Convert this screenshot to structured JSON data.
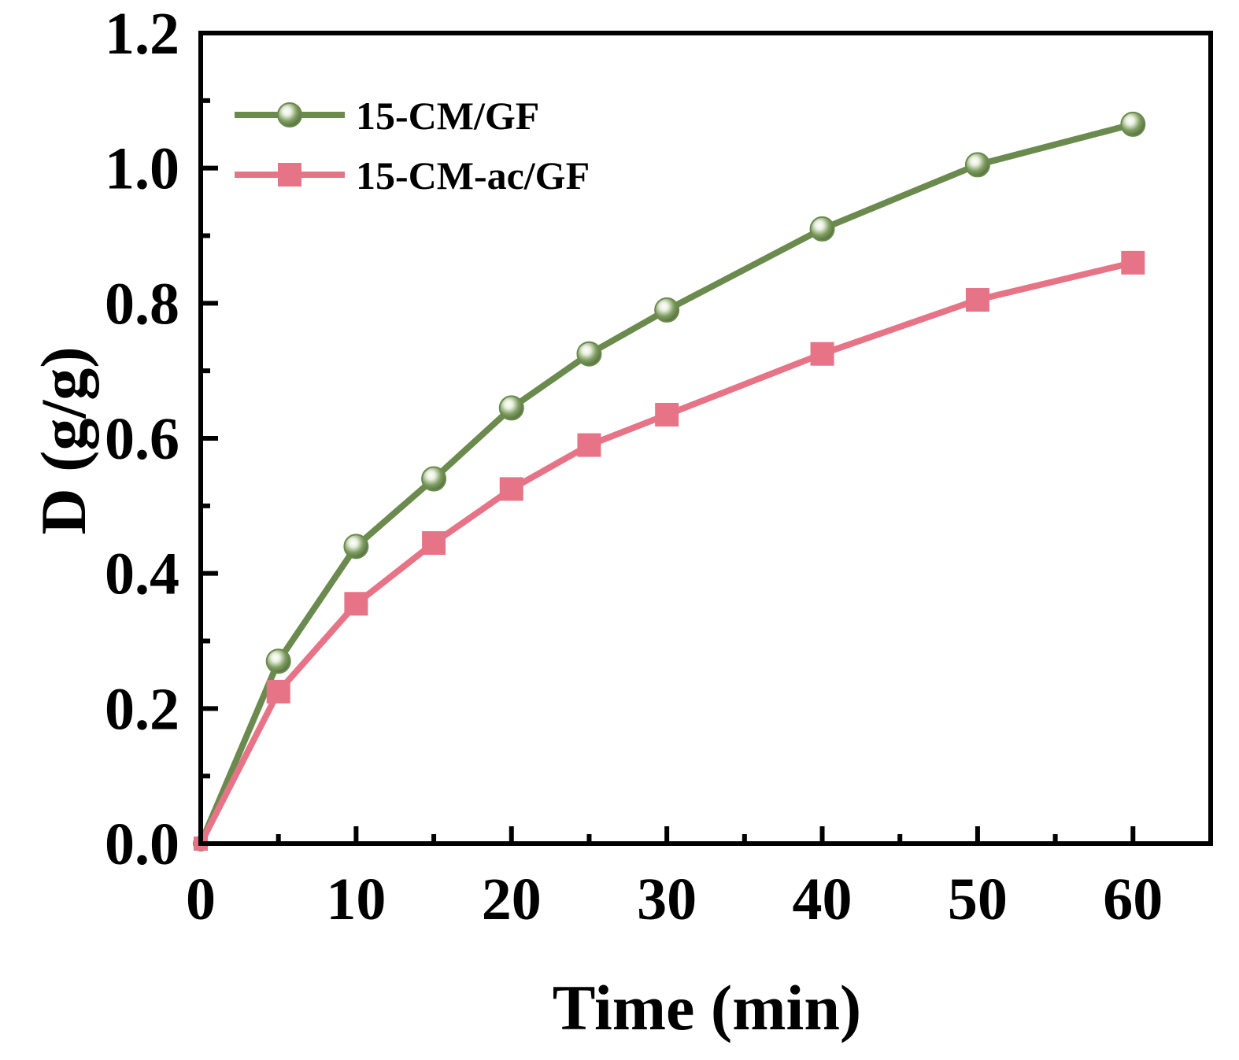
{
  "chart_data": {
    "type": "line",
    "title": "",
    "xlabel": "Time (min)",
    "ylabel": "D (g/g)",
    "xlim": [
      0,
      65
    ],
    "ylim": [
      0,
      1.2
    ],
    "xticks": [
      0,
      10,
      20,
      30,
      40,
      50,
      60
    ],
    "xtick_labels": [
      "0",
      "10",
      "20",
      "30",
      "40",
      "50",
      "60"
    ],
    "xminor_ticks": [
      5,
      15,
      25,
      35,
      45,
      55
    ],
    "yticks": [
      0,
      0.2,
      0.4,
      0.6,
      0.8,
      1.0,
      1.2
    ],
    "ytick_labels": [
      "0.0",
      "0.2",
      "0.4",
      "0.6",
      "0.8",
      "1.0",
      "1.2"
    ],
    "yminor_ticks": [
      0.1,
      0.3,
      0.5,
      0.7,
      0.9,
      1.1
    ],
    "grid": false,
    "legend_position": "top-left",
    "series": [
      {
        "name": "15-CM/GF",
        "color": "#6b8a4e",
        "marker": "sphere",
        "x": [
          0,
          5,
          10,
          15,
          20,
          25,
          30,
          40,
          50,
          60
        ],
        "y": [
          0.0,
          0.27,
          0.44,
          0.54,
          0.645,
          0.725,
          0.79,
          0.91,
          1.005,
          1.065
        ]
      },
      {
        "name": "15-CM-ac/GF",
        "color": "#e67486",
        "marker": "square",
        "x": [
          0,
          5,
          10,
          15,
          20,
          25,
          30,
          40,
          50,
          60
        ],
        "y": [
          0.0,
          0.225,
          0.355,
          0.445,
          0.525,
          0.59,
          0.635,
          0.725,
          0.805,
          0.86
        ]
      }
    ]
  }
}
